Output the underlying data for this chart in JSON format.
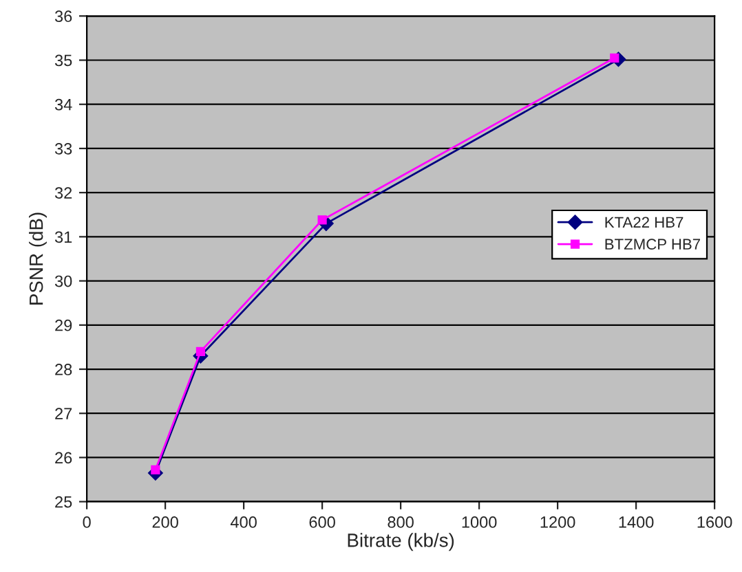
{
  "chart_data": {
    "type": "line",
    "xlabel": "Bitrate (kb/s)",
    "ylabel": "PSNR (dB)",
    "series": [
      {
        "name": "KTA22 HB7",
        "color": "#000080",
        "marker": "diamond",
        "x": [
          175,
          290,
          610,
          1355
        ],
        "values": [
          25.65,
          28.3,
          31.3,
          35.02
        ]
      },
      {
        "name": "BTZMCP HB7",
        "color": "#ff00ff",
        "marker": "square",
        "x": [
          175,
          290,
          600,
          1345
        ],
        "values": [
          25.72,
          28.4,
          31.38,
          35.05
        ]
      }
    ],
    "xlim": [
      0,
      1600
    ],
    "xticks": [
      0,
      200,
      400,
      600,
      800,
      1000,
      1200,
      1400,
      1600
    ],
    "ylim": [
      25,
      36
    ],
    "yticks": [
      25,
      26,
      27,
      28,
      29,
      30,
      31,
      32,
      33,
      34,
      35,
      36
    ],
    "grid": "y",
    "legend": "right",
    "line_style": "solid"
  }
}
